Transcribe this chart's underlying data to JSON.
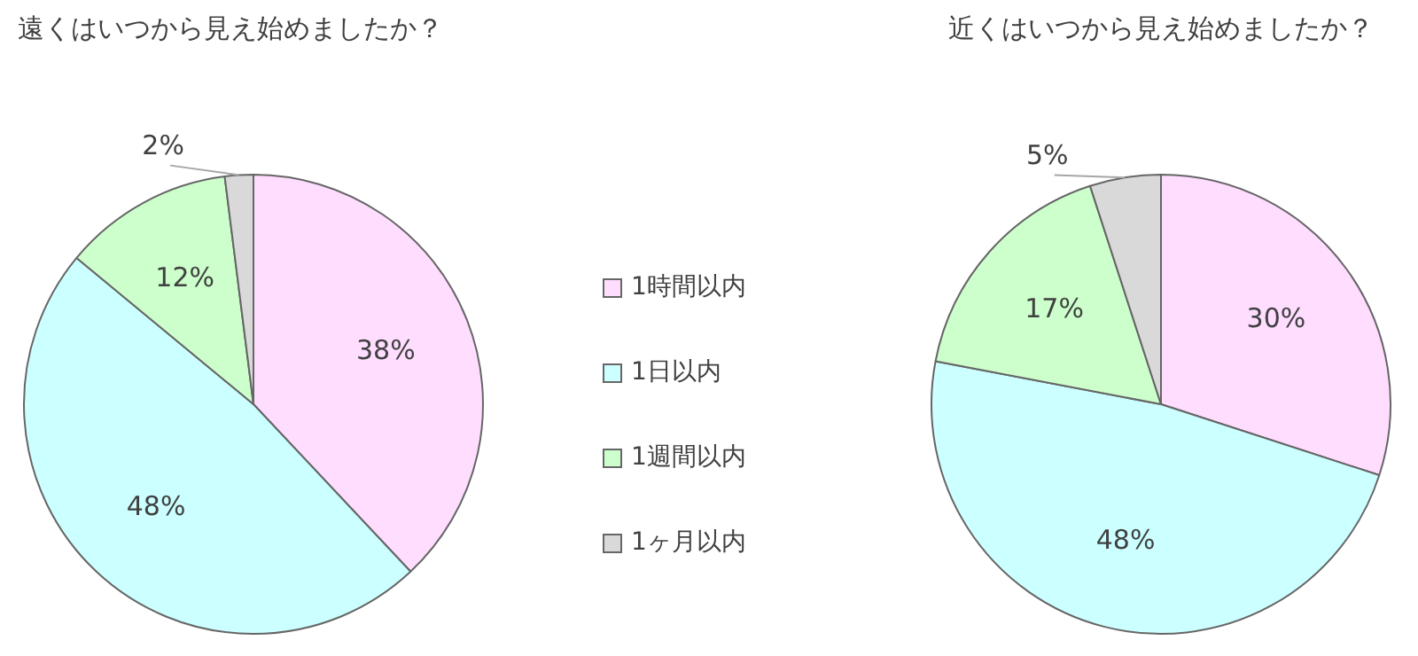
{
  "chart_data": [
    {
      "type": "pie",
      "title": "遠くはいつから見え始めましたか？",
      "categories": [
        "1時間以内",
        "1日以内",
        "1週間以内",
        "1ヶ月以内"
      ],
      "values": [
        38,
        48,
        12,
        2
      ],
      "value_labels": [
        "38%",
        "48%",
        "12%",
        "2%"
      ],
      "colors": [
        "#ffddff",
        "#ccffff",
        "#ccffcc",
        "#d9d9d9"
      ],
      "legend": "right"
    },
    {
      "type": "pie",
      "title": "近くはいつから見え始めましたか？",
      "categories": [
        null,
        null,
        null,
        null
      ],
      "values": [
        30,
        48,
        17,
        5
      ],
      "value_labels": [
        "30%",
        "48%",
        "17%",
        "5%"
      ],
      "colors": [
        "#ffddff",
        "#ccffff",
        "#ccffcc",
        "#d9d9d9"
      ]
    }
  ]
}
